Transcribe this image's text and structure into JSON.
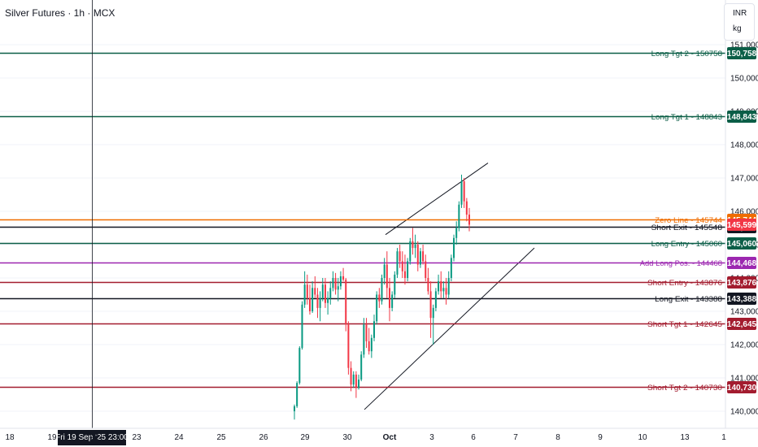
{
  "header": {
    "title": "Silver Futures · 1h · MCX"
  },
  "units": {
    "currency": "INR",
    "quantity": "kg"
  },
  "crosshair": {
    "label": "Fri 19 Sep '25   23:00"
  },
  "chart_data": {
    "type": "candlestick",
    "title": "Silver Futures · 1h · MCX",
    "ylim": [
      139700,
      151150
    ],
    "y_ticks": [
      {
        "value": 140000,
        "label": "140,000"
      },
      {
        "value": 141000,
        "label": "141,000"
      },
      {
        "value": 142000,
        "label": "142,000"
      },
      {
        "value": 143000,
        "label": "143,000"
      },
      {
        "value": 144000,
        "label": "144,000"
      },
      {
        "value": 145000,
        "label": "145,000"
      },
      {
        "value": 146000,
        "label": "146,000"
      },
      {
        "value": 147000,
        "label": "147,000"
      },
      {
        "value": 148000,
        "label": "148,000"
      },
      {
        "value": 149000,
        "label": "149,000"
      },
      {
        "value": 150000,
        "label": "150,000"
      },
      {
        "value": 151000,
        "label": "151,000"
      }
    ],
    "x_ticks": [
      "18",
      "19",
      "22",
      "23",
      "24",
      "25",
      "26",
      "29",
      "30",
      "Oct",
      "3",
      "6",
      "7",
      "8",
      "9",
      "10",
      "13",
      "1"
    ],
    "levels": [
      {
        "label": "Long Tgt 2 - 150758",
        "value": 150758,
        "badge": "150,758",
        "color": "#0b5e47"
      },
      {
        "label": "Long Tgt 1 - 148843",
        "value": 148843,
        "badge": "148,843",
        "color": "#0b5e47"
      },
      {
        "label": "Zero Line - 145744",
        "value": 145744,
        "badge": "145,744",
        "color": "#ef6c00"
      },
      {
        "label": "Short Exit - 145548",
        "value": 145548,
        "badge": "145,548",
        "color": "#131722"
      },
      {
        "label": "Long Entry - 145060",
        "value": 145060,
        "badge": "145,060",
        "color": "#0b5e47"
      },
      {
        "label": "Add Long Pos. - 144468",
        "value": 144468,
        "badge": "144,468",
        "color": "#9c27b0"
      },
      {
        "label": "Short Entry - 143876",
        "value": 143876,
        "badge": "143,876",
        "color": "#a31c2f"
      },
      {
        "label": "Long Exit - 143388",
        "value": 143388,
        "badge": "143,388",
        "color": "#131722"
      },
      {
        "label": "Short Tgt 1 - 142645",
        "value": 142645,
        "badge": "142,645",
        "color": "#a31c2f"
      },
      {
        "label": "Short Tgt 2 - 140730",
        "value": 140730,
        "badge": "140,730",
        "color": "#a31c2f"
      }
    ],
    "last_price": {
      "value": 145599,
      "badge": "145,599",
      "color": "#f23645"
    },
    "channel": {
      "upper": [
        [
          "Oct 1",
          145300
        ],
        [
          "Oct 6",
          147450
        ]
      ],
      "lower": [
        [
          "Sep 30",
          140050
        ],
        [
          "Oct 7",
          144900
        ]
      ]
    },
    "colors": {
      "up": "#089981",
      "down": "#f23645"
    },
    "candles": [
      [
        140000,
        140200,
        139750,
        140150
      ],
      [
        140150,
        140900,
        140100,
        140850
      ],
      [
        140850,
        141950,
        140800,
        141900
      ],
      [
        141900,
        143300,
        141850,
        143200
      ],
      [
        143200,
        144200,
        143100,
        143800
      ],
      [
        143800,
        144100,
        143200,
        143400
      ],
      [
        143400,
        143800,
        142900,
        143000
      ],
      [
        143000,
        143900,
        142950,
        143700
      ],
      [
        143700,
        144050,
        143400,
        143500
      ],
      [
        143500,
        143700,
        142800,
        143100
      ],
      [
        143100,
        143600,
        142700,
        143400
      ],
      [
        143400,
        144000,
        143300,
        143800
      ],
      [
        143800,
        144000,
        143100,
        143250
      ],
      [
        143250,
        143600,
        142900,
        143400
      ],
      [
        143400,
        143900,
        143200,
        143700
      ],
      [
        143700,
        144200,
        143600,
        144000
      ],
      [
        144000,
        144150,
        143500,
        143650
      ],
      [
        143650,
        144000,
        143300,
        143750
      ],
      [
        143750,
        144200,
        143650,
        144050
      ],
      [
        144050,
        144300,
        143900,
        143950
      ],
      [
        143950,
        144000,
        142400,
        142600
      ],
      [
        142600,
        142700,
        141100,
        141300
      ],
      [
        141300,
        141500,
        140600,
        140800
      ],
      [
        140800,
        141200,
        140700,
        141100
      ],
      [
        141100,
        141200,
        140400,
        140700
      ],
      [
        140700,
        141100,
        140650,
        140950
      ],
      [
        140950,
        141800,
        140900,
        141700
      ],
      [
        141700,
        142800,
        141600,
        142600
      ],
      [
        142600,
        142800,
        141900,
        142100
      ],
      [
        142100,
        142500,
        141700,
        141800
      ],
      [
        141800,
        142300,
        141600,
        142200
      ],
      [
        142200,
        142900,
        142100,
        142700
      ],
      [
        142700,
        143600,
        142600,
        143500
      ],
      [
        143500,
        143700,
        143100,
        143300
      ],
      [
        143300,
        144100,
        143200,
        144000
      ],
      [
        144000,
        144600,
        143800,
        144400
      ],
      [
        144400,
        144800,
        143400,
        143700
      ],
      [
        143700,
        144000,
        142700,
        143100
      ],
      [
        143100,
        143600,
        143000,
        143500
      ],
      [
        143500,
        144200,
        143400,
        144100
      ],
      [
        144100,
        144900,
        144000,
        144800
      ],
      [
        144800,
        145000,
        144300,
        144500
      ],
      [
        144500,
        144800,
        144000,
        144200
      ],
      [
        144200,
        144700,
        143800,
        144000
      ],
      [
        144000,
        144600,
        143900,
        144500
      ],
      [
        144500,
        145200,
        144400,
        145100
      ],
      [
        145100,
        145500,
        144700,
        144900
      ],
      [
        144900,
        145300,
        144600,
        145000
      ],
      [
        145000,
        145100,
        144200,
        144400
      ],
      [
        144400,
        144900,
        144300,
        144800
      ],
      [
        144800,
        145000,
        144400,
        144500
      ],
      [
        144500,
        144700,
        143900,
        144000
      ],
      [
        144000,
        144300,
        143500,
        143600
      ],
      [
        143600,
        143900,
        142200,
        142800
      ],
      [
        142800,
        143200,
        142000,
        143100
      ],
      [
        143100,
        143700,
        143000,
        143600
      ],
      [
        143600,
        144100,
        143500,
        143900
      ],
      [
        143900,
        144200,
        143400,
        143600
      ],
      [
        143600,
        143900,
        143400,
        143700
      ],
      [
        143700,
        144000,
        143200,
        143500
      ],
      [
        143500,
        144200,
        143400,
        144000
      ],
      [
        144000,
        144700,
        143900,
        144600
      ],
      [
        144600,
        145300,
        144500,
        145200
      ],
      [
        145200,
        145700,
        145000,
        145500
      ],
      [
        145500,
        146300,
        145400,
        146200
      ],
      [
        146200,
        147100,
        146100,
        146900
      ],
      [
        146900,
        147000,
        146100,
        146300
      ],
      [
        146300,
        146400,
        145700,
        145900
      ],
      [
        145900,
        146100,
        145400,
        145599
      ]
    ]
  }
}
